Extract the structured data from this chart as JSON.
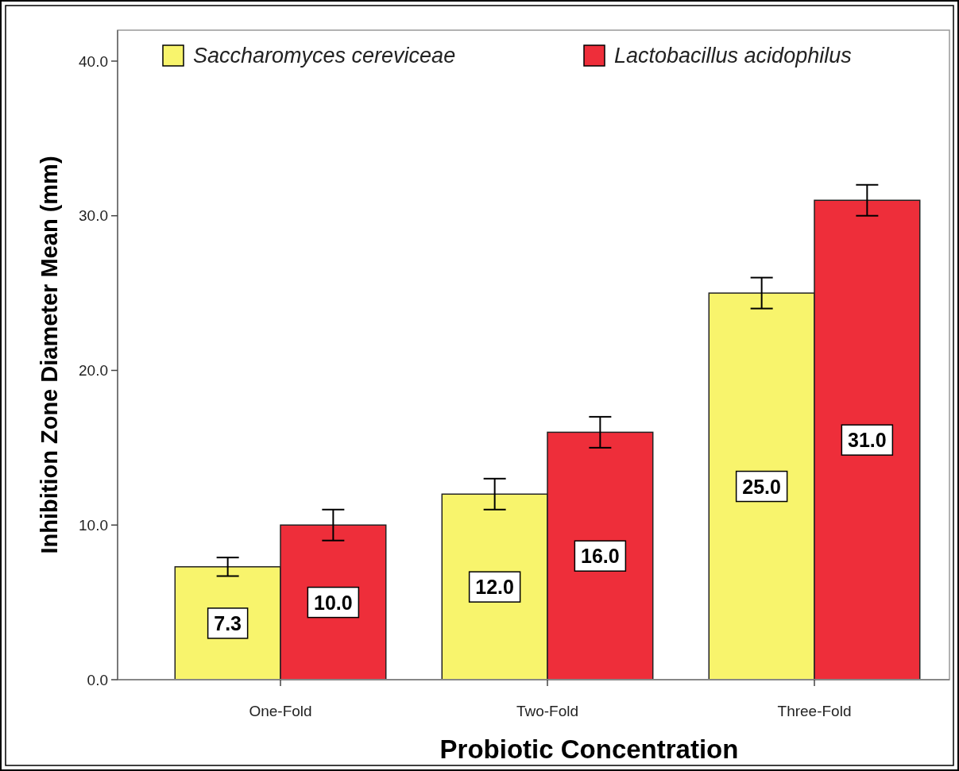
{
  "chart_data": {
    "type": "bar",
    "xlabel": "Probiotic Concentration",
    "ylabel": "Inhibition Zone Diameter Mean (mm)",
    "categories": [
      "One-Fold",
      "Two-Fold",
      "Three-Fold"
    ],
    "series": [
      {
        "name": "Saccharomyces cereviceae",
        "color": "#f8f46c",
        "values": [
          7.3,
          12.0,
          25.0
        ],
        "value_labels": [
          "7.3",
          "12.0",
          "25.0"
        ],
        "errors": [
          0.6,
          1,
          1
        ]
      },
      {
        "name": "Lactobacillus acidophilus",
        "color": "#ee2e3a",
        "values": [
          10.0,
          16.0,
          31.0
        ],
        "value_labels": [
          "10.0",
          "16.0",
          "31.0"
        ],
        "errors": [
          1,
          1,
          1
        ]
      }
    ],
    "ylim": [
      0,
      42
    ],
    "yticks": [
      {
        "value": 0,
        "label": "0.0"
      },
      {
        "value": 10,
        "label": "10.0"
      },
      {
        "value": 20,
        "label": "20.0"
      },
      {
        "value": 30,
        "label": "30.0"
      },
      {
        "value": 40,
        "label": "40.0"
      }
    ],
    "grid": false,
    "legend": "top"
  }
}
